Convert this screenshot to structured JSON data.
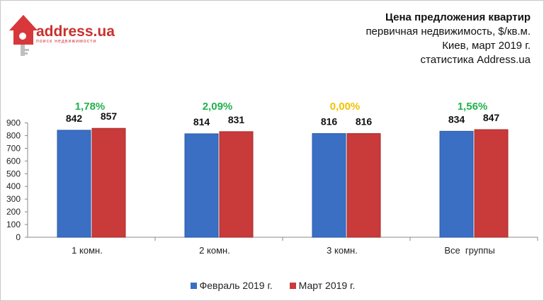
{
  "logo": {
    "brand": "address.ua",
    "tagline": "поиск недвижимости"
  },
  "header": {
    "title": "Цена предложения квартир",
    "subtitle_lines": [
      "первичная недвижимость, $/кв.м.",
      "Киев, март 2019 г.",
      "статистика Address.ua"
    ]
  },
  "colors": {
    "feb": "#3a6fc4",
    "mar": "#c93a3a",
    "growth_positive": "#22b14c",
    "growth_zero": "#f2c200",
    "axis": "#888888"
  },
  "chart_data": {
    "type": "bar",
    "categories": [
      "1 комн.",
      "2 комн.",
      "3 комн.",
      "Все  группы"
    ],
    "series": [
      {
        "name": "Февраль 2019 г.",
        "values": [
          842,
          814,
          816,
          834
        ]
      },
      {
        "name": "Март 2019 г.",
        "values": [
          857,
          831,
          816,
          847
        ]
      }
    ],
    "changes": [
      "1,78%",
      "2,09%",
      "0,00%",
      "1,56%"
    ],
    "ylim": [
      0,
      900
    ],
    "yticks": [
      0,
      100,
      200,
      300,
      400,
      500,
      600,
      700,
      800,
      900
    ],
    "legend_position": "bottom",
    "grid": false
  }
}
